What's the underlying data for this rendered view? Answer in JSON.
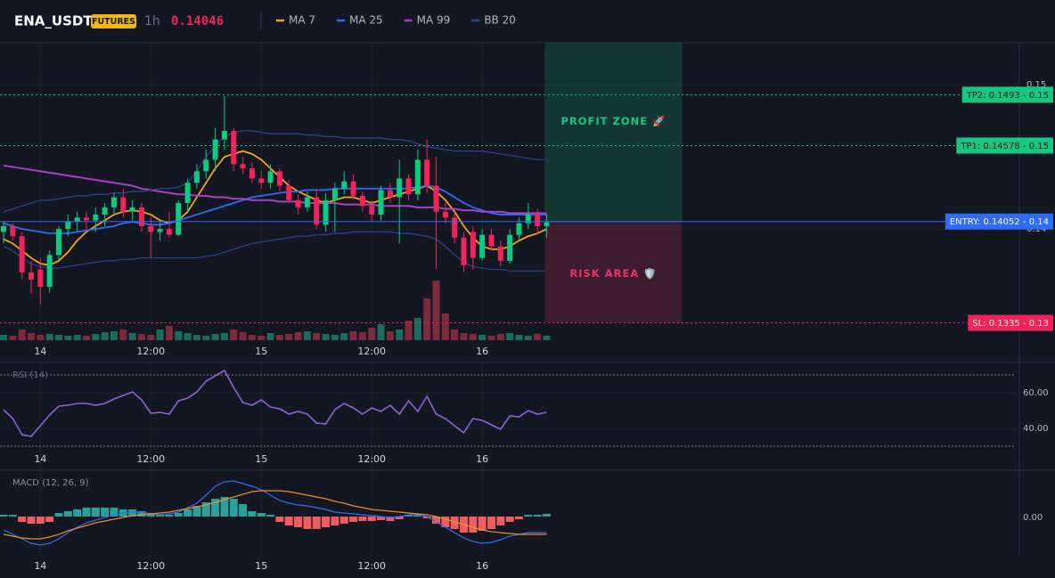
{
  "chart_data": [
    {
      "type": "candlestick",
      "symbol": "ENA_USDT",
      "badge": "FUTURES",
      "interval": "1h",
      "last_price": 0.14046,
      "categories": [
        null,
        null,
        null,
        null,
        "14",
        null,
        null,
        null,
        null,
        null,
        null,
        null,
        null,
        null,
        null,
        null,
        "12:00",
        null,
        null,
        null,
        null,
        null,
        null,
        null,
        null,
        null,
        null,
        null,
        "15",
        null,
        null,
        null,
        null,
        null,
        null,
        null,
        null,
        null,
        null,
        null,
        "12:00",
        null,
        null,
        null,
        null,
        null,
        null,
        null,
        null,
        null,
        null,
        null,
        "16",
        null,
        null,
        null,
        null,
        null,
        null,
        null
      ],
      "open": [
        0.1398,
        0.1402,
        0.1395,
        0.137,
        0.1372,
        0.136,
        0.1382,
        0.14,
        0.1405,
        0.1408,
        0.1406,
        0.141,
        0.1415,
        0.1422,
        0.1412,
        0.1415,
        0.1402,
        0.1398,
        0.14,
        0.1396,
        0.1418,
        0.1432,
        0.144,
        0.1448,
        0.1462,
        0.1468,
        0.1445,
        0.1442,
        0.1435,
        0.1432,
        0.144,
        0.143,
        0.142,
        0.1415,
        0.1422,
        0.1403,
        0.142,
        0.1428,
        0.1433,
        0.1423,
        0.1416,
        0.141,
        0.1427,
        0.1422,
        0.1435,
        0.1424,
        0.1448,
        0.143,
        0.1412,
        0.1408,
        0.1394,
        0.1398,
        0.138,
        0.1396,
        0.1388,
        0.1378,
        0.1396,
        0.1404,
        0.141,
        0.1402
      ],
      "high": [
        0.1405,
        0.1404,
        0.1398,
        0.1378,
        0.138,
        0.1385,
        0.1402,
        0.141,
        0.1412,
        0.1412,
        0.1415,
        0.1418,
        0.1425,
        0.1428,
        0.142,
        0.1418,
        0.1408,
        0.1405,
        0.1412,
        0.142,
        0.1435,
        0.1445,
        0.1455,
        0.147,
        0.1492,
        0.147,
        0.145,
        0.1446,
        0.144,
        0.1445,
        0.1442,
        0.1434,
        0.1424,
        0.1426,
        0.1428,
        0.1425,
        0.1432,
        0.144,
        0.1438,
        0.1426,
        0.142,
        0.143,
        0.1432,
        0.1448,
        0.1438,
        0.1455,
        0.1462,
        0.145,
        0.1418,
        0.1412,
        0.1398,
        0.1402,
        0.14,
        0.14,
        0.1392,
        0.14,
        0.1408,
        0.1418,
        0.1414,
        0.141
      ],
      "low": [
        0.139,
        0.1392,
        0.1365,
        0.1355,
        0.1348,
        0.1356,
        0.1378,
        0.1395,
        0.1398,
        0.14,
        0.1398,
        0.1402,
        0.141,
        0.1408,
        0.1406,
        0.1398,
        0.138,
        0.1392,
        0.1394,
        0.1395,
        0.1412,
        0.1428,
        0.1435,
        0.144,
        0.1455,
        0.144,
        0.1438,
        0.1432,
        0.1428,
        0.1428,
        0.1426,
        0.1418,
        0.141,
        0.1412,
        0.14,
        0.1398,
        0.1398,
        0.1424,
        0.142,
        0.1412,
        0.1405,
        0.1406,
        0.1418,
        0.139,
        0.142,
        0.142,
        0.1425,
        0.1372,
        0.1404,
        0.139,
        0.137,
        0.1372,
        0.1378,
        0.1385,
        0.1374,
        0.1376,
        0.1392,
        0.14,
        0.1396,
        0.1394
      ],
      "close": [
        0.1402,
        0.1395,
        0.137,
        0.1365,
        0.136,
        0.1382,
        0.14,
        0.1405,
        0.1408,
        0.1406,
        0.141,
        0.1415,
        0.1422,
        0.1412,
        0.1415,
        0.1402,
        0.1398,
        0.14,
        0.1396,
        0.1418,
        0.1432,
        0.144,
        0.1448,
        0.1462,
        0.1468,
        0.1445,
        0.1442,
        0.1435,
        0.1432,
        0.144,
        0.143,
        0.142,
        0.1415,
        0.1422,
        0.1403,
        0.142,
        0.1428,
        0.1433,
        0.1423,
        0.1416,
        0.141,
        0.1427,
        0.1422,
        0.1435,
        0.1424,
        0.1448,
        0.143,
        0.1412,
        0.1408,
        0.1394,
        0.1375,
        0.138,
        0.1396,
        0.1388,
        0.1378,
        0.1396,
        0.1404,
        0.141,
        0.1402,
        0.14046
      ],
      "volume": [
        6,
        5,
        12,
        8,
        6,
        7,
        6,
        5,
        6,
        5,
        7,
        9,
        10,
        12,
        8,
        7,
        6,
        12,
        16,
        10,
        8,
        6,
        5,
        7,
        8,
        12,
        9,
        6,
        5,
        8,
        6,
        7,
        9,
        10,
        8,
        7,
        6,
        8,
        10,
        9,
        14,
        18,
        10,
        12,
        22,
        25,
        47,
        67,
        30,
        12,
        8,
        7,
        6,
        5,
        7,
        8,
        6,
        5,
        7,
        5
      ],
      "up_color": "#0ecb81",
      "down_color": "#f0245a",
      "volume_up_color": "#1d6b5c",
      "volume_down_color": "#7d2a3d",
      "series": [
        {
          "name": "MA 7",
          "color": "#f7a21b",
          "values": [
            0.1393,
            0.139,
            0.1385,
            0.138,
            0.1376,
            0.1375,
            0.1378,
            0.1384,
            0.1392,
            0.1398,
            0.1402,
            0.1406,
            0.141,
            0.1412,
            0.1413,
            0.1412,
            0.141,
            0.1406,
            0.1404,
            0.1406,
            0.1412,
            0.1422,
            0.1432,
            0.1442,
            0.145,
            0.1452,
            0.1454,
            0.1452,
            0.1448,
            0.1442,
            0.1436,
            0.143,
            0.1426,
            0.1423,
            0.142,
            0.1418,
            0.142,
            0.1422,
            0.1422,
            0.142,
            0.1418,
            0.142,
            0.1422,
            0.1424,
            0.1426,
            0.1428,
            0.143,
            0.1426,
            0.142,
            0.1412,
            0.1402,
            0.1394,
            0.1388,
            0.1386,
            0.1386,
            0.1388,
            0.1392,
            0.1395,
            0.1397,
            0.14
          ]
        },
        {
          "name": "MA 25",
          "color": "#2f6cf5",
          "values": [
            0.1404,
            0.1402,
            0.14,
            0.1399,
            0.1398,
            0.1397,
            0.1397,
            0.1397,
            0.1398,
            0.1399,
            0.14,
            0.1401,
            0.1402,
            0.1404,
            0.1405,
            0.1404,
            0.1403,
            0.1403,
            0.1404,
            0.1406,
            0.1408,
            0.141,
            0.1412,
            0.1414,
            0.1416,
            0.1418,
            0.142,
            0.1422,
            0.1423,
            0.1424,
            0.1425,
            0.1426,
            0.1426,
            0.1427,
            0.1427,
            0.1427,
            0.1428,
            0.1428,
            0.1428,
            0.1428,
            0.1428,
            0.1428,
            0.1428,
            0.1428,
            0.1428,
            0.1429,
            0.143,
            0.1429,
            0.1426,
            0.1422,
            0.1418,
            0.1415,
            0.1413,
            0.1411,
            0.141,
            0.141,
            0.141,
            0.141,
            0.141,
            0.141
          ]
        },
        {
          "name": "MA 99",
          "color": "#a63fc2",
          "values": [
            0.1444,
            0.1443,
            0.1442,
            0.1441,
            0.144,
            0.1439,
            0.1438,
            0.1437,
            0.1436,
            0.1435,
            0.1434,
            0.1433,
            0.1432,
            0.1431,
            0.143,
            0.1428,
            0.1427,
            0.1426,
            0.1425,
            0.1424,
            0.1424,
            0.1423,
            0.1423,
            0.1422,
            0.1422,
            0.1421,
            0.1421,
            0.142,
            0.142,
            0.142,
            0.1419,
            0.1419,
            0.1419,
            0.1418,
            0.1418,
            0.1418,
            0.1418,
            0.1417,
            0.1417,
            0.1417,
            0.1417,
            0.1416,
            0.1416,
            0.1416,
            0.1416,
            0.1415,
            0.1415,
            0.1415,
            0.1414,
            0.1414,
            0.1413,
            0.1413,
            0.1412,
            0.1412,
            0.1412,
            0.1411,
            0.1411,
            0.1411,
            0.1411,
            0.1411
          ]
        },
        {
          "name": "BB 20",
          "color": "#2b448f",
          "upper": [
            0.1412,
            0.1414,
            0.1416,
            0.1418,
            0.142,
            0.142,
            0.1421,
            0.1422,
            0.1423,
            0.1423,
            0.1424,
            0.1424,
            0.1425,
            0.1425,
            0.1426,
            0.1426,
            0.1427,
            0.1428,
            0.1428,
            0.1429,
            0.1432,
            0.144,
            0.145,
            0.1458,
            0.1464,
            0.1467,
            0.1468,
            0.1468,
            0.1467,
            0.1466,
            0.1466,
            0.1466,
            0.1466,
            0.1465,
            0.1465,
            0.1464,
            0.1464,
            0.1463,
            0.1463,
            0.1463,
            0.1463,
            0.1463,
            0.1462,
            0.1462,
            0.1461,
            0.1459,
            0.1457,
            0.1456,
            0.1455,
            0.1454,
            0.1454,
            0.1454,
            0.1454,
            0.1453,
            0.1452,
            0.1451,
            0.145,
            0.1449,
            0.1448,
            0.1448
          ],
          "lower": [
            0.1388,
            0.1385,
            0.138,
            0.1376,
            0.1374,
            0.1373,
            0.1373,
            0.1374,
            0.1375,
            0.1376,
            0.1377,
            0.1378,
            0.1378,
            0.1379,
            0.1379,
            0.138,
            0.138,
            0.138,
            0.138,
            0.138,
            0.138,
            0.138,
            0.1381,
            0.1382,
            0.1384,
            0.1386,
            0.1388,
            0.139,
            0.1391,
            0.1392,
            0.1393,
            0.1394,
            0.1395,
            0.1395,
            0.1396,
            0.1396,
            0.1397,
            0.1397,
            0.1398,
            0.1398,
            0.1398,
            0.1398,
            0.1398,
            0.1397,
            0.1397,
            0.1396,
            0.1395,
            0.1393,
            0.1388,
            0.1382,
            0.1377,
            0.1374,
            0.1373,
            0.1372,
            0.1372,
            0.1371,
            0.1371,
            0.1371,
            0.1371,
            0.1371
          ]
        }
      ],
      "levels": [
        {
          "value": 0.1493,
          "label": "TP2: 0.1493 - 0.15",
          "color": "#16c784",
          "style": "dotted"
        },
        {
          "value": 0.14578,
          "label": "TP1: 0.14578 - 0.15",
          "color": "#16c784",
          "style": "dotted"
        },
        {
          "value": 0.14052,
          "label": "ENTRY: 0.14052 - 0.14",
          "color": "#2f6cf5",
          "style": "solid"
        },
        {
          "value": 0.1335,
          "label": "SL: 0.1335 - 0.13",
          "color": "#f0245a",
          "style": "dotted"
        }
      ],
      "zones": [
        {
          "label": "PROFIT ZONE 🚀",
          "color": "#16c784"
        },
        {
          "label": "RISK AREA 🛡️",
          "color": "#e8336b"
        }
      ],
      "ylim": [
        0.1323,
        0.1529
      ],
      "yticks": [
        0.14,
        0.15
      ],
      "grid": true
    },
    {
      "type": "line",
      "title": "RSI (14)",
      "color": "#8e63d6",
      "values": [
        50.5,
        45.5,
        36.5,
        35.5,
        41.5,
        47.5,
        52.5,
        53,
        54,
        54,
        53,
        54,
        56.5,
        58.5,
        60.5,
        56,
        48.5,
        49,
        48,
        55.5,
        57,
        60.5,
        66.5,
        69.5,
        72.5,
        63,
        54.5,
        53,
        56,
        52,
        51,
        48,
        49.5,
        48,
        43,
        42.5,
        50.5,
        54,
        51.5,
        48,
        51.5,
        49.5,
        53,
        48,
        55.5,
        49.5,
        58,
        48,
        45.5,
        41.5,
        37.5,
        45.5,
        44.5,
        42,
        39.5,
        47,
        46.5,
        50,
        48,
        49
      ],
      "levels": [
        70,
        30
      ],
      "ylim": [
        16.5,
        76.5
      ],
      "yticks": [
        {
          "value": 60,
          "label": "60.00"
        },
        {
          "value": 40,
          "label": "40.00"
        }
      ]
    },
    {
      "type": "macd",
      "title": "MACD (12, 26, 9)",
      "macd": {
        "color": "#2f6cf5",
        "values": [
          -0.0003,
          -0.0004,
          -0.0005,
          -0.0006,
          -0.00064,
          -0.0006,
          -0.0005,
          -0.00036,
          -0.00024,
          -0.00014,
          -8e-05,
          -2e-05,
          4e-05,
          8e-05,
          0.0001,
          0.0001,
          6e-05,
          4e-05,
          6e-05,
          0.0001,
          0.0002,
          0.0003,
          0.00048,
          0.00068,
          0.00078,
          0.0008,
          0.00074,
          0.00068,
          0.0006,
          0.00048,
          0.00036,
          0.0003,
          0.00026,
          0.00024,
          0.0002,
          0.00016,
          0.0001,
          8e-05,
          6e-05,
          4e-05,
          2e-05,
          0,
          -2e-05,
          0,
          4e-05,
          4e-05,
          0,
          -0.00012,
          -0.00024,
          -0.00036,
          -0.00048,
          -0.00056,
          -0.0006,
          -0.00058,
          -0.00052,
          -0.00044,
          -0.0004,
          -0.00036,
          -0.00036,
          -0.00036
        ]
      },
      "signal": {
        "color": "#f08a24",
        "values": [
          -0.0004,
          -0.00044,
          -0.00048,
          -0.0005,
          -0.0005,
          -0.00046,
          -0.0004,
          -0.00032,
          -0.00026,
          -0.0002,
          -0.00014,
          -0.0001,
          -6e-05,
          -2e-05,
          2e-05,
          4e-05,
          6e-05,
          8e-05,
          0.0001,
          0.00014,
          0.00018,
          0.00022,
          0.00026,
          0.00032,
          0.00038,
          0.00044,
          0.0005,
          0.00056,
          0.00058,
          0.00058,
          0.00058,
          0.00056,
          0.00052,
          0.00048,
          0.00044,
          0.0004,
          0.00034,
          0.0003,
          0.00024,
          0.0002,
          0.00016,
          0.00014,
          0.00012,
          0.0001,
          8e-05,
          6e-05,
          4e-05,
          0,
          -6e-05,
          -0.00012,
          -0.00018,
          -0.00024,
          -0.0003,
          -0.00034,
          -0.00036,
          -0.00038,
          -0.0004,
          -0.0004,
          -0.0004,
          -0.0004
        ]
      },
      "histogram": {
        "up_color": "#2aa198",
        "down_color": "#ef5e5e",
        "values": [
          4e-05,
          4e-05,
          -0.00012,
          -0.00016,
          -0.00016,
          -0.00012,
          8e-05,
          0.00012,
          0.00016,
          0.0002,
          0.0002,
          0.0002,
          0.0002,
          0.00016,
          0.00016,
          0.00012,
          8e-05,
          4e-05,
          4e-05,
          8e-05,
          0.00016,
          0.00024,
          0.00032,
          0.0004,
          0.00044,
          0.0004,
          0.00028,
          0.00012,
          8e-05,
          4e-05,
          -0.00012,
          -0.0002,
          -0.00024,
          -0.00028,
          -0.00028,
          -0.00024,
          -0.0002,
          -0.00016,
          -0.00012,
          -0.0001,
          -0.0001,
          -8e-05,
          -0.0001,
          -6e-05,
          4e-05,
          4e-05,
          -4e-05,
          -0.00016,
          -0.00024,
          -0.00028,
          -0.00036,
          -0.00036,
          -0.00032,
          -0.00028,
          -0.0002,
          -0.00012,
          -6e-05,
          4e-05,
          4e-05,
          6e-05
        ]
      },
      "ylim": [
        -0.0009,
        0.001
      ],
      "yticks": [
        {
          "value": 0,
          "label": "0.00"
        }
      ]
    }
  ]
}
